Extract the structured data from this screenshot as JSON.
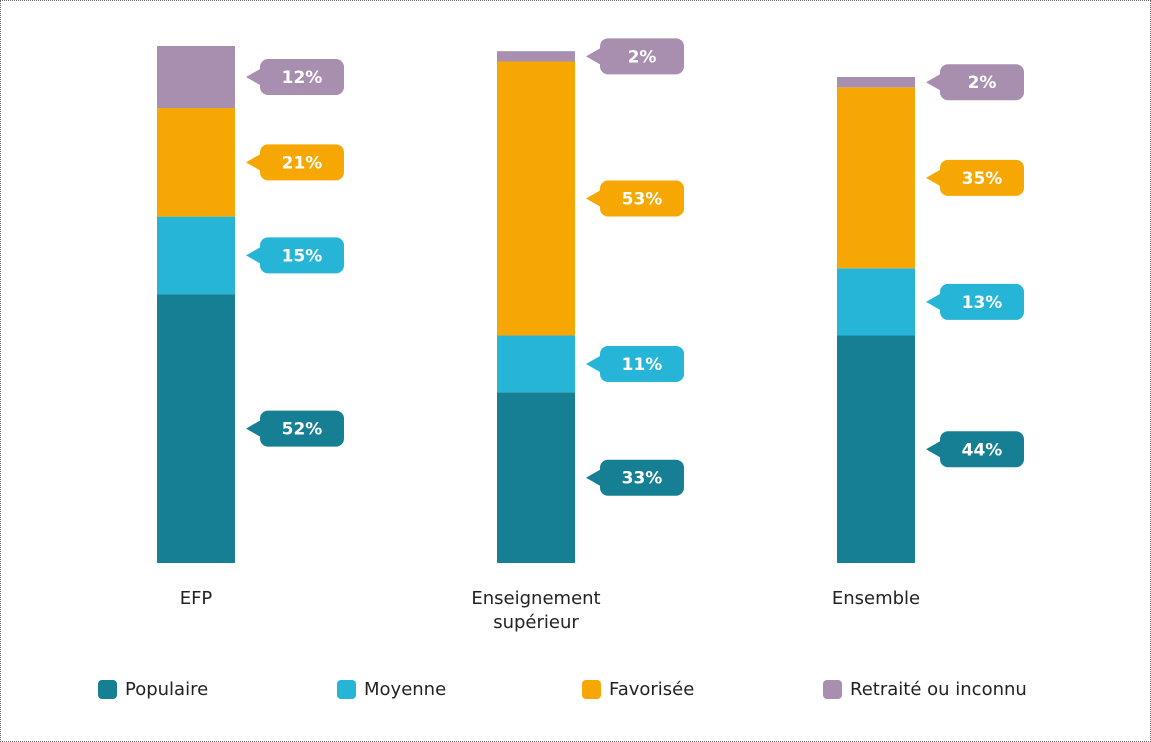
{
  "chart_data": {
    "type": "stacked_bar",
    "categories": [
      "EFP",
      "Enseignement supérieur",
      "Ensemble"
    ],
    "ylim": [
      0,
      100
    ],
    "series": [
      {
        "name": "Populaire",
        "color": "#177f93",
        "values": [
          52,
          33,
          44
        ],
        "value_labels": [
          "52%",
          "33%",
          "44%"
        ]
      },
      {
        "name": "Moyenne",
        "color": "#26b5d6",
        "values": [
          15,
          11,
          13
        ],
        "value_labels": [
          "15%",
          "11%",
          "13%"
        ]
      },
      {
        "name": "Favorisée",
        "color": "#f6a704",
        "values": [
          21,
          53,
          35
        ],
        "value_labels": [
          "21%",
          "53%",
          "35%"
        ]
      },
      {
        "name": "Retraité ou inconnu",
        "color": "#a98faf",
        "values": [
          12,
          2,
          2
        ],
        "value_labels": [
          "12%",
          "2%",
          "2%"
        ]
      }
    ]
  }
}
